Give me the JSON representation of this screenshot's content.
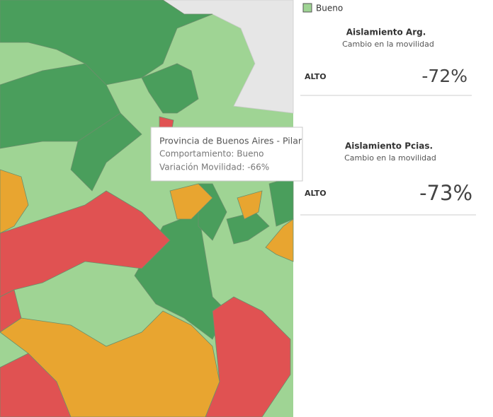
{
  "legend": {
    "label": "Bueno"
  },
  "panels": [
    {
      "title": "Aislamiento Arg.",
      "subtitle": "Cambio  en la movilidad",
      "level": "ALTO",
      "value": "-72%"
    },
    {
      "title": "Aislamiento Pcias.",
      "subtitle": "Cambio  en la movilidad",
      "level": "ALTO",
      "value": "-73%"
    }
  ],
  "tooltip": {
    "lines": [
      "Provincia de Buenos Aires - Pilar",
      "Comportamiento: Bueno",
      "Variación Movilidad: -66%"
    ]
  }
}
